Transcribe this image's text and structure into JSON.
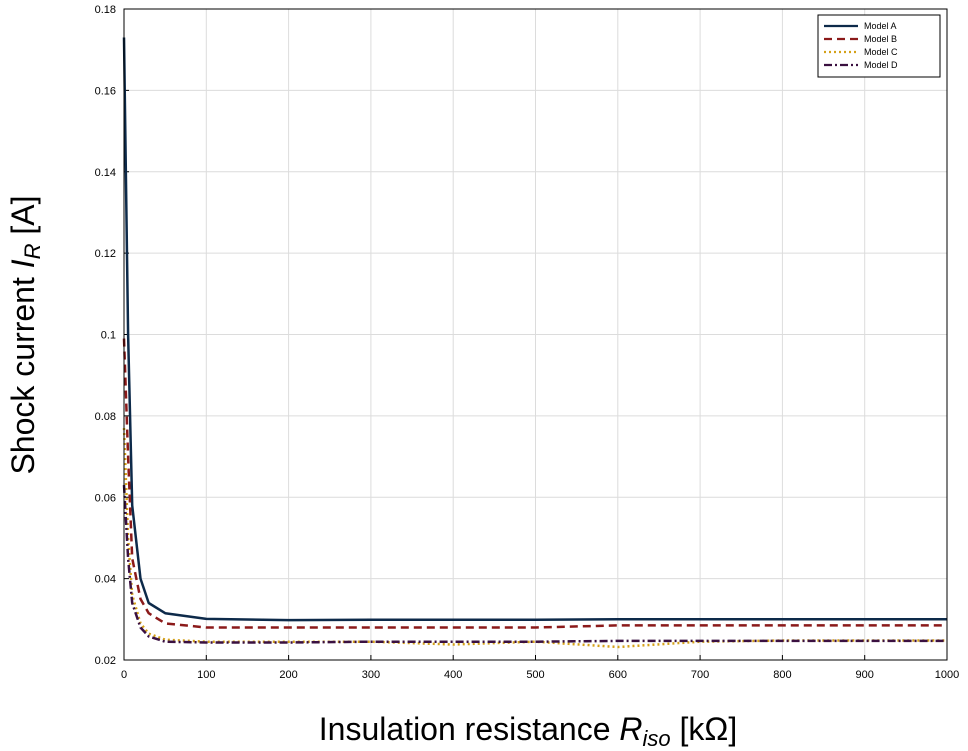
{
  "chart_data": {
    "type": "line",
    "xlabel": {
      "main": "Insulation resistance ",
      "var": "R",
      "sub": "iso",
      "unit": " [kΩ]"
    },
    "ylabel": {
      "main": "Shock current ",
      "var": "I",
      "sub": "R",
      "unit": " [A]"
    },
    "xlim": [
      0,
      1000
    ],
    "ylim": [
      0.02,
      0.18
    ],
    "x_ticks": [
      "0",
      "100",
      "200",
      "300",
      "400",
      "500",
      "600",
      "700",
      "800",
      "900",
      "1000"
    ],
    "y_ticks": [
      "0.02",
      "0.04",
      "0.06",
      "0.08",
      "0.1",
      "0.12",
      "0.14",
      "0.16",
      "0.18"
    ],
    "grid": true,
    "legend_position": "top-right",
    "series": [
      {
        "name": "Model A",
        "color": "#0d2a4a",
        "style": "solid",
        "x": [
          0,
          5,
          10,
          20,
          30,
          50,
          100,
          200,
          300,
          400,
          500,
          600,
          700,
          800,
          900,
          1000
        ],
        "y": [
          0.173,
          0.1,
          0.058,
          0.04,
          0.034,
          0.0315,
          0.0301,
          0.0298,
          0.0299,
          0.0299,
          0.0299,
          0.03,
          0.03,
          0.03,
          0.03,
          0.03
        ]
      },
      {
        "name": "Model B",
        "color": "#8b1a1a",
        "style": "dashed",
        "x": [
          0,
          5,
          10,
          20,
          30,
          50,
          100,
          200,
          300,
          400,
          500,
          600,
          700,
          800,
          900,
          1000
        ],
        "y": [
          0.099,
          0.07,
          0.045,
          0.035,
          0.0315,
          0.029,
          0.028,
          0.028,
          0.028,
          0.028,
          0.028,
          0.0285,
          0.0285,
          0.0285,
          0.0285,
          0.0285
        ]
      },
      {
        "name": "Model C",
        "color": "#d4a017",
        "style": "dotted",
        "x": [
          0,
          5,
          10,
          20,
          30,
          50,
          100,
          200,
          300,
          400,
          500,
          600,
          700,
          800,
          900,
          1000
        ],
        "y": [
          0.077,
          0.05,
          0.036,
          0.029,
          0.0265,
          0.025,
          0.0245,
          0.0245,
          0.0245,
          0.0238,
          0.0245,
          0.0232,
          0.0245,
          0.0248,
          0.0248,
          0.0248
        ]
      },
      {
        "name": "Model D",
        "color": "#3a1040",
        "style": "dashdot",
        "x": [
          0,
          5,
          10,
          20,
          30,
          50,
          100,
          200,
          300,
          400,
          500,
          600,
          700,
          800,
          900,
          1000
        ],
        "y": [
          0.063,
          0.045,
          0.034,
          0.028,
          0.0258,
          0.0245,
          0.0243,
          0.0243,
          0.0245,
          0.0245,
          0.0245,
          0.0247,
          0.0247,
          0.0247,
          0.0247,
          0.0247
        ]
      }
    ]
  }
}
